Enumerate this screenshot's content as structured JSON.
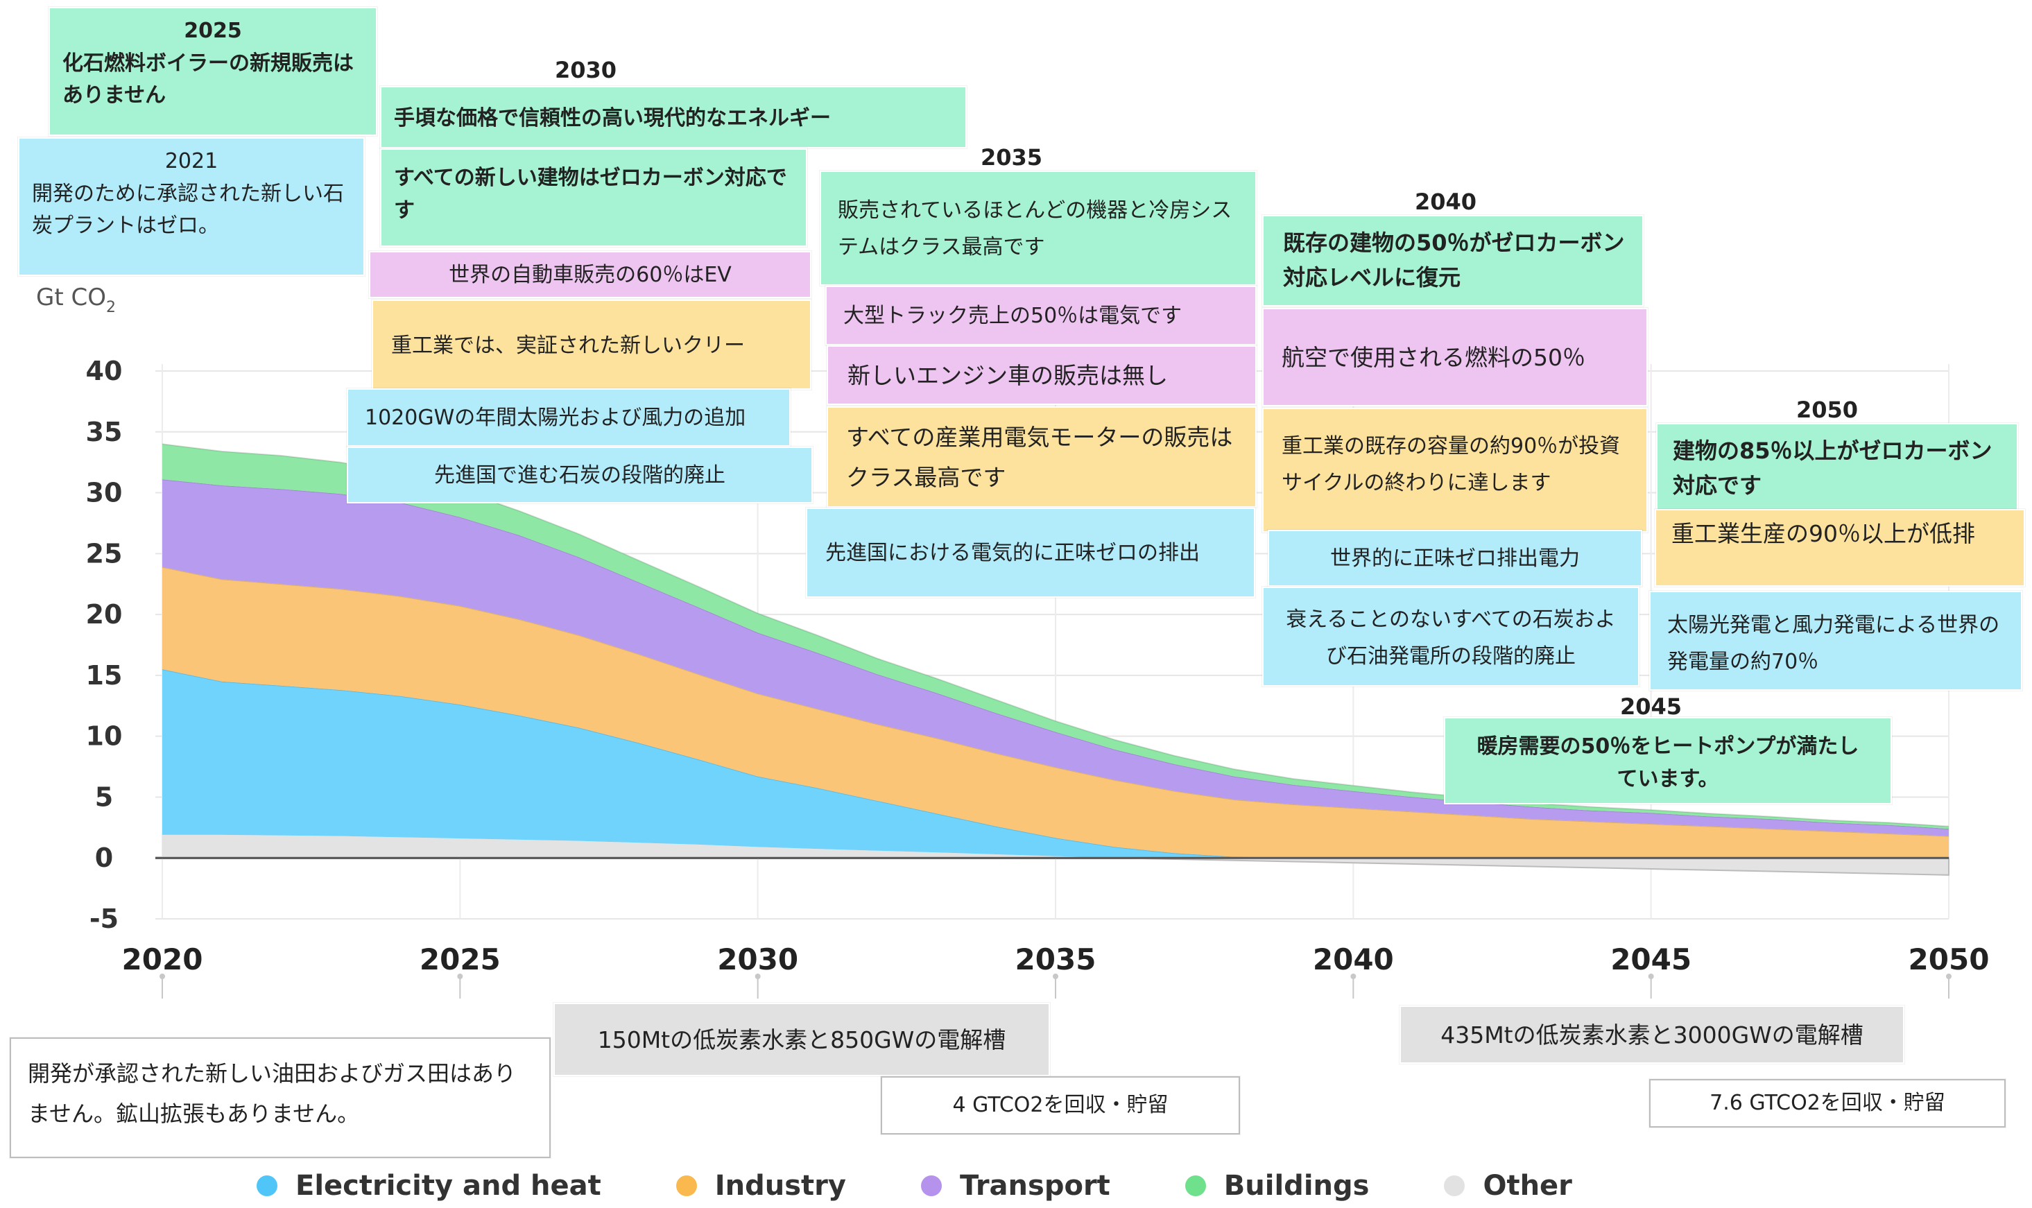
{
  "chart_data": {
    "type": "area",
    "stacked": true,
    "title": "",
    "xlabel": "",
    "ylabel": "Gt CO2",
    "unit_label": "Gt CO",
    "unit_subscript": "2",
    "ylim": [
      -5,
      40
    ],
    "xlim": [
      2020,
      2050
    ],
    "y_ticks": [
      40,
      35,
      30,
      25,
      20,
      15,
      10,
      5,
      0,
      -5
    ],
    "x_ticks": [
      2020,
      2025,
      2030,
      2035,
      2040,
      2045,
      2050
    ],
    "x": [
      2020,
      2021,
      2022,
      2023,
      2024,
      2025,
      2026,
      2027,
      2028,
      2029,
      2030,
      2031,
      2032,
      2033,
      2034,
      2035,
      2036,
      2037,
      2038,
      2039,
      2040,
      2041,
      2042,
      2043,
      2044,
      2045,
      2046,
      2047,
      2048,
      2049,
      2050
    ],
    "series": [
      {
        "name": "Other",
        "color": "#e3e3e3",
        "values": [
          1.9,
          1.9,
          1.85,
          1.8,
          1.7,
          1.6,
          1.5,
          1.4,
          1.25,
          1.1,
          0.9,
          0.75,
          0.6,
          0.45,
          0.3,
          0.15,
          0.0,
          -0.1,
          -0.2,
          -0.3,
          -0.4,
          -0.5,
          -0.6,
          -0.7,
          -0.8,
          -0.9,
          -1.0,
          -1.1,
          -1.2,
          -1.3,
          -1.4
        ]
      },
      {
        "name": "Electricity and heat",
        "color": "#6fd3fb",
        "values": [
          13.6,
          12.6,
          12.3,
          12.0,
          11.6,
          11.0,
          10.2,
          9.3,
          8.2,
          7.0,
          5.8,
          5.0,
          4.1,
          3.2,
          2.3,
          1.5,
          0.9,
          0.4,
          0.1,
          0.0,
          0.0,
          0.0,
          0.0,
          0.0,
          0.0,
          0.0,
          0.0,
          0.0,
          0.0,
          0.0,
          0.0
        ]
      },
      {
        "name": "Industry",
        "color": "#fbc577",
        "values": [
          8.4,
          8.4,
          8.35,
          8.3,
          8.2,
          8.1,
          7.9,
          7.6,
          7.3,
          7.0,
          6.8,
          6.5,
          6.3,
          6.2,
          6.0,
          5.8,
          5.5,
          5.1,
          4.7,
          4.4,
          4.1,
          3.8,
          3.5,
          3.2,
          3.0,
          2.8,
          2.6,
          2.4,
          2.2,
          2.0,
          1.8
        ]
      },
      {
        "name": "Transport",
        "color": "#b79bef",
        "values": [
          7.2,
          7.7,
          7.8,
          7.8,
          7.7,
          7.3,
          6.9,
          6.4,
          5.9,
          5.5,
          5.0,
          4.6,
          4.1,
          3.7,
          3.3,
          2.9,
          2.5,
          2.2,
          1.9,
          1.6,
          1.4,
          1.2,
          1.1,
          1.0,
          0.9,
          0.9,
          0.8,
          0.8,
          0.7,
          0.7,
          0.6
        ]
      },
      {
        "name": "Buildings",
        "color": "#8ee7a4",
        "values": [
          2.9,
          2.8,
          2.75,
          2.6,
          2.4,
          2.2,
          2.0,
          1.9,
          1.8,
          1.7,
          1.6,
          1.45,
          1.3,
          1.2,
          1.1,
          0.9,
          0.8,
          0.7,
          0.6,
          0.5,
          0.45,
          0.4,
          0.35,
          0.3,
          0.3,
          0.25,
          0.25,
          0.2,
          0.2,
          0.2,
          0.2
        ]
      }
    ],
    "legend_position": "bottom",
    "grid": true
  },
  "legend": [
    {
      "label": "Electricity and heat",
      "color": "#4fc6f7"
    },
    {
      "label": "Industry",
      "color": "#f9b94f"
    },
    {
      "label": "Transport",
      "color": "#b592ec"
    },
    {
      "label": "Buildings",
      "color": "#6fe08c"
    },
    {
      "label": "Other",
      "color": "#e2e2e2"
    }
  ],
  "milestones": {
    "y2030_heading": "2030",
    "y2035_heading": "2035",
    "y2040_heading": "2040",
    "y2045_heading": "2045",
    "y2050_heading": "2050",
    "m2025_year": "2025",
    "m2025_text": "化石燃料ボイラーの新規販売はありません",
    "m2021_year": "2021",
    "m2021_text": "開発のために承認された新しい石炭プラントはゼロ。",
    "m2030_energy": "手頃な価格で信頼性の高い現代的なエネルギー",
    "m2030_buildings": "すべての新しい建物はゼロカーボン対応です",
    "m2030_ev": "世界の自動車販売の60％はEV",
    "m2030_industry": "重工業では、実証された新しいクリー",
    "m2030_solar": "1020GWの年間太陽光および風力の追加",
    "m2030_coal": "先進国で進む石炭の段階的廃止",
    "m2035_appliances": "販売されているほとんどの機器と冷房システムはクラス最高です",
    "m2035_trucks": "大型トラック売上の50％は電気です",
    "m2035_ice": "新しいエンジン車の販売は無し",
    "m2035_motors": "すべての産業用電気モーターの販売はクラス最高です",
    "m2035_power": "先進国における電気的に正味ゼロの排出",
    "m2040_buildings": "既存の建物の50％がゼロカーボン対応レベルに復元",
    "m2040_aviation": "航空で使用される燃料の50％",
    "m2040_industry": "重工業の既存の容量の約90％が投資サイクルの終わりに達します",
    "m2040_power": "世界的に正味ゼロ排出電力",
    "m2040_coal": "衰えることのないすべての石炭および石油発電所の段階的廃止",
    "m2045_heat": "暖房需要の50％をヒートポンプが満たしています。",
    "m2050_buildings": "建物の85％以上がゼロカーボン対応です",
    "m2050_industry": "重工業生産の90％以上が低排",
    "m2050_solar": "太陽光発電と風力発電による世界の発電量の約70％",
    "b2021_oil": "開発が承認された新しい油田およびガス田はありません。鉱山拡張もありません。",
    "b2030_h2": "150Mtの低炭素水素と850GWの電解槽",
    "b2035_ccs": "4 GTCO2を回収・貯留",
    "b2045_h2": "435Mtの低炭素水素と3000GWの電解槽",
    "b2050_ccs": "7.6 GTCO2を回収・貯留"
  }
}
